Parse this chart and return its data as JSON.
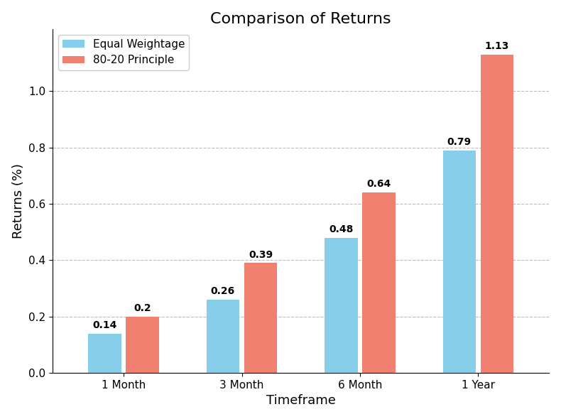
{
  "title": "Comparison of Returns",
  "xlabel": "Timeframe",
  "ylabel": "Returns (%)",
  "categories": [
    "1 Month",
    "3 Month",
    "6 Month",
    "1 Year"
  ],
  "series": [
    {
      "label": "Equal Weightage",
      "values": [
        0.14,
        0.26,
        0.48,
        0.79
      ],
      "annotations": [
        "0.14",
        "0.26",
        "0.48",
        "0.79"
      ],
      "color": "#87CEEB"
    },
    {
      "label": "80-20 Principle",
      "values": [
        0.2,
        0.39,
        0.64,
        1.13
      ],
      "annotations": [
        "0.2",
        "0.39",
        "0.64",
        "1.13"
      ],
      "color": "#F08070"
    }
  ],
  "ylim": [
    0.0,
    1.22
  ],
  "yticks": [
    0.0,
    0.2,
    0.4,
    0.6,
    0.8,
    1.0
  ],
  "bar_width": 0.28,
  "bar_gap": 0.04,
  "grid_color": "#bbbbbb",
  "background_color": "#ffffff",
  "title_fontsize": 16,
  "label_fontsize": 13,
  "tick_fontsize": 11,
  "annotation_fontsize": 10,
  "legend_fontsize": 11
}
